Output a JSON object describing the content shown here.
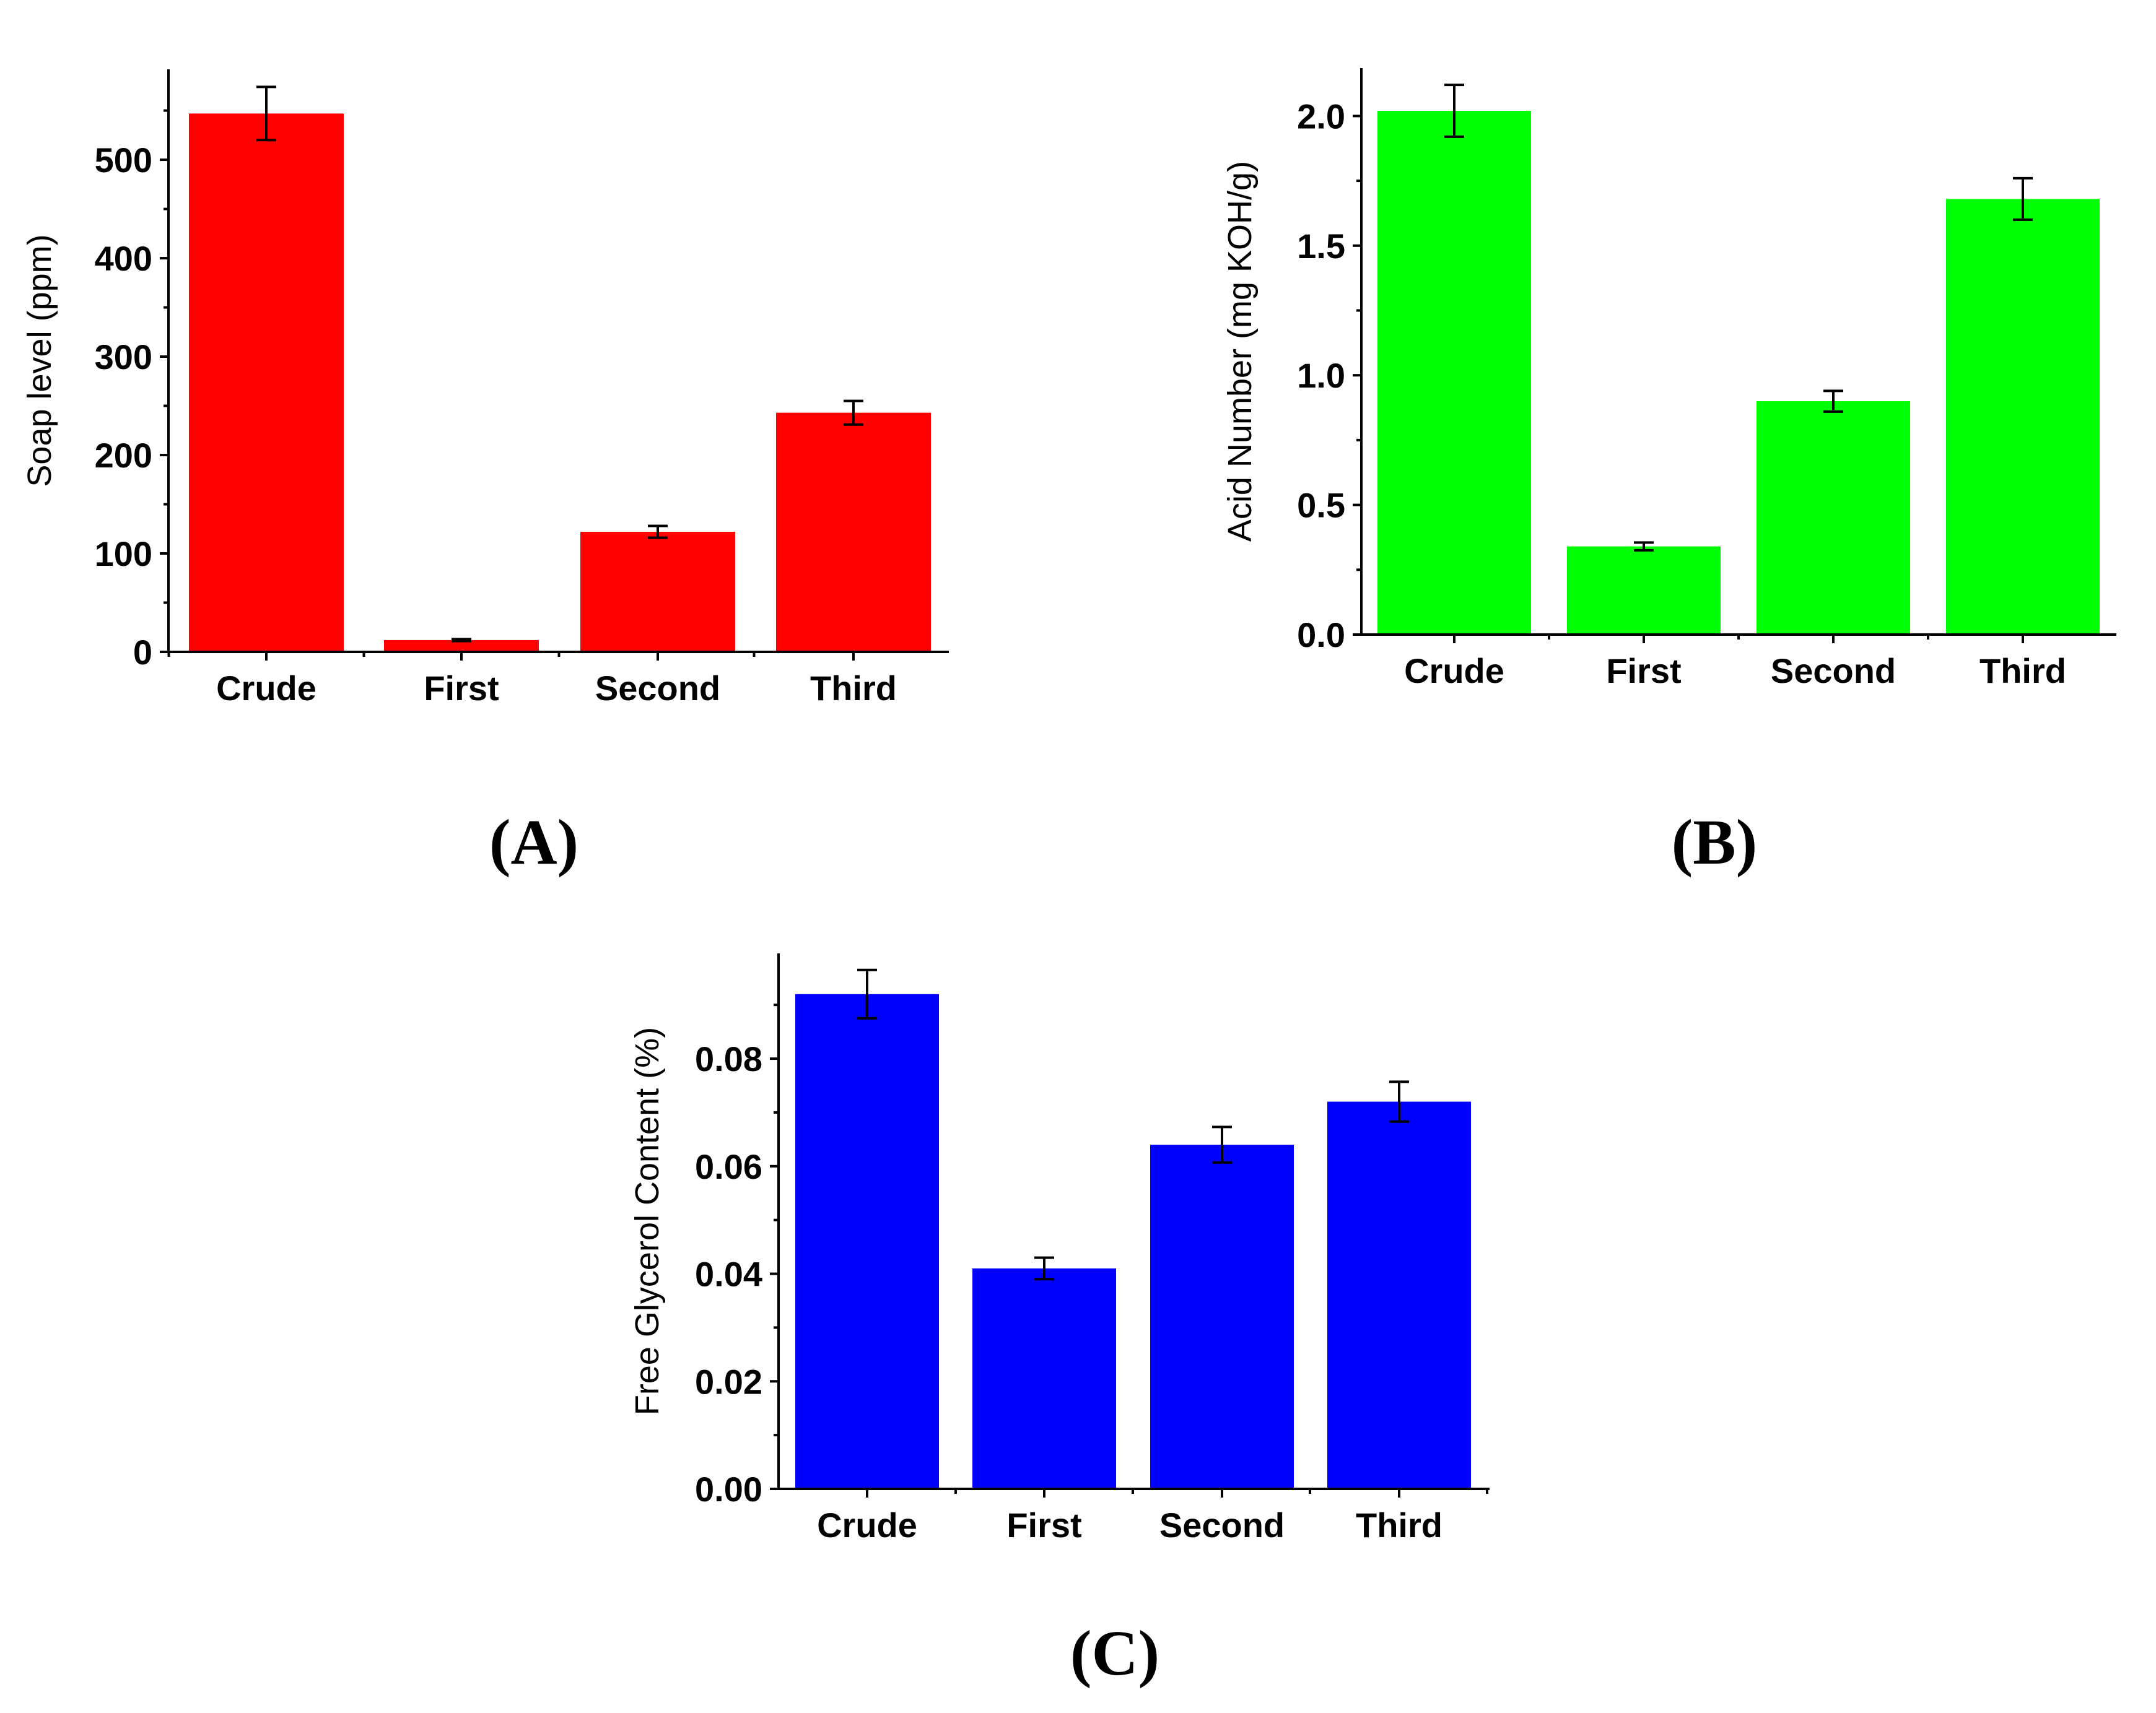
{
  "chart_data": [
    {
      "type": "bar",
      "panel_label": "(A)",
      "categories": [
        "Crude",
        "First",
        "Second",
        "Third"
      ],
      "values": [
        547,
        12,
        122,
        243
      ],
      "errors": [
        27,
        1,
        6,
        12
      ],
      "ylabel": "Soap level (ppm)",
      "xlabel": "",
      "ylim": [
        0,
        590
      ],
      "yticks": [
        0,
        100,
        200,
        300,
        400,
        500
      ],
      "ytick_labels": [
        "0",
        "100",
        "200",
        "300",
        "400",
        "500"
      ],
      "color": "#ff0000"
    },
    {
      "type": "bar",
      "panel_label": "(B)",
      "categories": [
        "Crude",
        "First",
        "Second",
        "Third"
      ],
      "values": [
        2.02,
        0.34,
        0.9,
        1.68
      ],
      "errors": [
        0.1,
        0.015,
        0.04,
        0.08
      ],
      "ylabel": "Acid Number (mg KOH/g)",
      "xlabel": "",
      "ylim": [
        0,
        2.18
      ],
      "yticks": [
        0,
        0.5,
        1.0,
        1.5,
        2.0
      ],
      "ytick_labels": [
        "0.0",
        "0.5",
        "1.0",
        "1.5",
        "2.0"
      ],
      "color": "#00ff00"
    },
    {
      "type": "bar",
      "panel_label": "(C)",
      "categories": [
        "Crude",
        "First",
        "Second",
        "Third"
      ],
      "values": [
        0.092,
        0.041,
        0.064,
        0.072
      ],
      "errors": [
        0.0045,
        0.002,
        0.0033,
        0.0037
      ],
      "ylabel": "Free Glycerol Content (%)",
      "xlabel": "",
      "ylim": [
        0,
        0.099
      ],
      "yticks": [
        0,
        0.02,
        0.04,
        0.06,
        0.08
      ],
      "ytick_labels": [
        "0.00",
        "0.02",
        "0.04",
        "0.06",
        "0.08"
      ],
      "color": "#0000ff"
    }
  ]
}
